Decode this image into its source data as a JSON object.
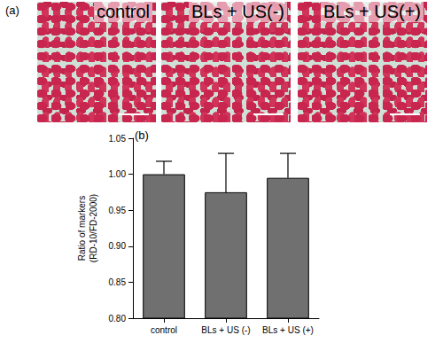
{
  "panel_a": {
    "label": "(a)",
    "images": [
      "control",
      "BLs + US(-)",
      "BLs + US(+)"
    ]
  },
  "chart_data": {
    "type": "bar",
    "annotations": [
      "(b)"
    ],
    "y_label": "Ratio of markers\n(RD-10/FD-2000)",
    "categories": [
      "control",
      "BLs + US (-)",
      "BLs + US (+)"
    ],
    "values": [
      1.0,
      0.975,
      0.995
    ],
    "errors": [
      0.018,
      0.054,
      0.034
    ],
    "color": "#707070",
    "ylim": [
      0.8,
      1.05
    ],
    "yticks": [
      {
        "value": 0.8,
        "label": "0.80"
      },
      {
        "value": 0.85,
        "label": "0.85"
      },
      {
        "value": 0.9,
        "label": "0.90"
      },
      {
        "value": 0.95,
        "label": "0.95"
      },
      {
        "value": 1.0,
        "label": "1.00"
      },
      {
        "value": 1.05,
        "label": "1.05"
      }
    ],
    "grid": false
  }
}
